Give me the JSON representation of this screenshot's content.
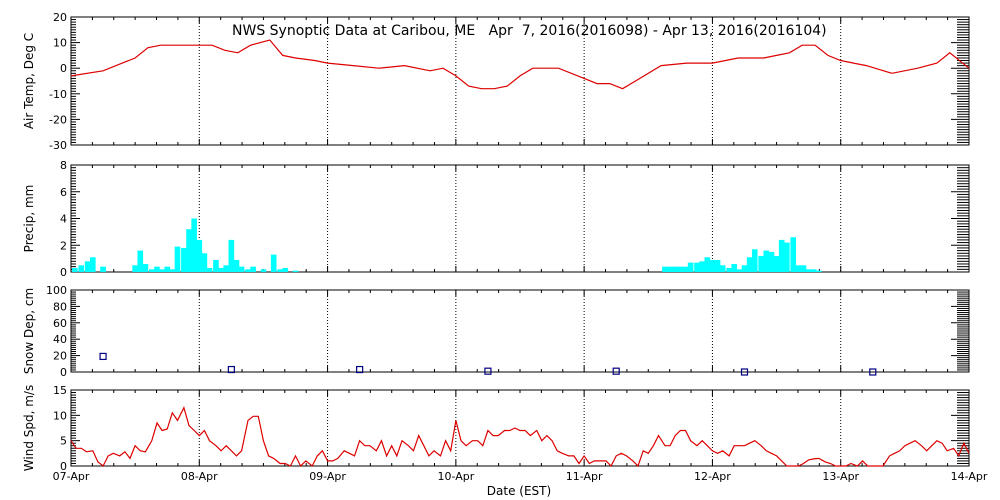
{
  "title": "NWS Synoptic Data at Caribou, ME   Apr  7, 2016(2016098) - Apr 13, 2016(2016104)",
  "x_axis": {
    "label": "Date (EST)",
    "ticks": [
      "07-Apr",
      "08-Apr",
      "09-Apr",
      "10-Apr",
      "11-Apr",
      "12-Apr",
      "13-Apr",
      "14-Apr"
    ]
  },
  "colors": {
    "temp_line": "#dd0000",
    "precip_bar": "#00ffff",
    "snow_marker": "#000080",
    "wind_line": "#dd0000"
  },
  "chart_data": [
    {
      "type": "line",
      "ylabel": "Air Temp, Deg C",
      "ylim": [
        -30,
        20
      ],
      "yticks": [
        20,
        10,
        0,
        -10,
        -20,
        -30
      ],
      "grid": "vertical dotted at each day",
      "x_units": "days since 07-Apr 00:00",
      "x": [
        0,
        0.25,
        0.4,
        0.5,
        0.6,
        0.7,
        0.8,
        0.9,
        1.0,
        1.1,
        1.2,
        1.3,
        1.4,
        1.55,
        1.65,
        1.75,
        1.9,
        2.0,
        2.2,
        2.4,
        2.6,
        2.8,
        2.9,
        3.0,
        3.1,
        3.2,
        3.3,
        3.4,
        3.5,
        3.6,
        3.8,
        4.0,
        4.1,
        4.2,
        4.3,
        4.4,
        4.6,
        4.8,
        5.0,
        5.2,
        5.3,
        5.4,
        5.5,
        5.6,
        5.7,
        5.8,
        5.9,
        6.0,
        6.1,
        6.2,
        6.4,
        6.6,
        6.75,
        6.85,
        7.0
      ],
      "y": [
        -3,
        -1,
        2,
        4,
        8,
        9,
        9,
        9,
        9,
        9,
        7,
        6,
        9,
        11,
        5,
        4,
        3,
        2,
        1,
        0,
        1,
        -1,
        0,
        -3,
        -7,
        -8,
        -8,
        -7,
        -3,
        0,
        0,
        -4,
        -6,
        -6,
        -8,
        -5,
        1,
        2,
        2,
        4,
        4,
        4,
        5,
        6,
        9,
        9,
        5,
        3,
        2,
        1,
        -2,
        0,
        2,
        6,
        0
      ]
    },
    {
      "type": "bar",
      "ylabel": "Precip, mm",
      "ylim": [
        0,
        8
      ],
      "yticks": [
        8,
        6,
        4,
        2,
        0
      ],
      "x_units": "days since 07-Apr 00:00 (hourly bins)",
      "x": [
        0.03,
        0.08,
        0.13,
        0.17,
        0.25,
        0.5,
        0.54,
        0.58,
        0.63,
        0.67,
        0.71,
        0.75,
        0.79,
        0.83,
        0.88,
        0.92,
        0.96,
        1.0,
        1.04,
        1.08,
        1.13,
        1.17,
        1.21,
        1.25,
        1.29,
        1.33,
        1.38,
        1.42,
        1.5,
        1.58,
        1.63,
        1.67,
        1.75,
        4.63,
        4.67,
        4.71,
        4.75,
        4.79,
        4.83,
        4.88,
        4.92,
        4.96,
        5.0,
        5.04,
        5.08,
        5.13,
        5.17,
        5.21,
        5.25,
        5.29,
        5.33,
        5.38,
        5.42,
        5.46,
        5.5,
        5.54,
        5.58,
        5.63,
        5.67,
        5.71,
        5.75,
        5.79,
        5.83
      ],
      "values": [
        0.3,
        0.5,
        0.8,
        1.1,
        0.4,
        0.5,
        1.6,
        0.6,
        0.2,
        0.4,
        0.2,
        0.4,
        0.2,
        1.9,
        1.8,
        3.2,
        4.0,
        2.4,
        1.4,
        0.3,
        0.9,
        0.3,
        0.5,
        2.4,
        0.9,
        0.4,
        0.2,
        0.4,
        0.2,
        1.3,
        0.2,
        0.3,
        0.1,
        0.4,
        0.4,
        0.4,
        0.4,
        0.4,
        0.7,
        0.7,
        0.8,
        1.1,
        0.9,
        0.9,
        0.5,
        0.3,
        0.6,
        0.2,
        0.5,
        1.1,
        1.7,
        1.2,
        1.6,
        1.5,
        1.2,
        2.4,
        2.2,
        2.6,
        0.5,
        0.5,
        0.2,
        0.2,
        0.1
      ]
    },
    {
      "type": "scatter",
      "ylabel": "Snow Dep, cm",
      "ylim": [
        0,
        100
      ],
      "yticks": [
        100,
        80,
        60,
        40,
        20,
        0
      ],
      "marker": "open square",
      "x_units": "days since 07-Apr 00:00",
      "x": [
        0.25,
        1.25,
        2.25,
        3.25,
        4.25,
        5.25,
        6.25
      ],
      "y": [
        19,
        3,
        3,
        1,
        1,
        0,
        0
      ]
    },
    {
      "type": "line",
      "ylabel": "Wind Spd, m/s",
      "ylim": [
        0,
        15
      ],
      "yticks": [
        15,
        10,
        5,
        0
      ],
      "x_units": "days since 07-Apr 00:00",
      "x": [
        0,
        0.04,
        0.08,
        0.12,
        0.17,
        0.21,
        0.25,
        0.29,
        0.33,
        0.38,
        0.42,
        0.46,
        0.5,
        0.54,
        0.58,
        0.63,
        0.67,
        0.71,
        0.75,
        0.79,
        0.83,
        0.88,
        0.92,
        0.96,
        1.0,
        1.04,
        1.08,
        1.13,
        1.17,
        1.21,
        1.25,
        1.29,
        1.33,
        1.38,
        1.42,
        1.46,
        1.5,
        1.54,
        1.58,
        1.63,
        1.67,
        1.71,
        1.75,
        1.79,
        1.83,
        1.88,
        1.92,
        1.96,
        2.0,
        2.04,
        2.08,
        2.13,
        2.17,
        2.21,
        2.25,
        2.29,
        2.33,
        2.38,
        2.42,
        2.46,
        2.5,
        2.54,
        2.58,
        2.63,
        2.67,
        2.71,
        2.75,
        2.79,
        2.83,
        2.88,
        2.92,
        2.96,
        3.0,
        3.04,
        3.08,
        3.13,
        3.17,
        3.21,
        3.25,
        3.29,
        3.33,
        3.38,
        3.42,
        3.46,
        3.5,
        3.54,
        3.58,
        3.63,
        3.67,
        3.71,
        3.75,
        3.79,
        3.83,
        3.88,
        3.92,
        3.96,
        4.0,
        4.04,
        4.08,
        4.13,
        4.17,
        4.21,
        4.25,
        4.29,
        4.33,
        4.38,
        4.42,
        4.46,
        4.5,
        4.54,
        4.58,
        4.63,
        4.67,
        4.71,
        4.75,
        4.79,
        4.83,
        4.88,
        4.92,
        4.96,
        5.0,
        5.04,
        5.08,
        5.13,
        5.17,
        5.21,
        5.25,
        5.29,
        5.33,
        5.38,
        5.42,
        5.46,
        5.5,
        5.54,
        5.58,
        5.63,
        5.67,
        5.71,
        5.75,
        5.79,
        5.83,
        5.88,
        5.92,
        5.96,
        6.0,
        6.04,
        6.08,
        6.13,
        6.17,
        6.21,
        6.25,
        6.29,
        6.33,
        6.38,
        6.42,
        6.46,
        6.5,
        6.54,
        6.58,
        6.63,
        6.67,
        6.71,
        6.75,
        6.79,
        6.83,
        6.88,
        6.92,
        6.96,
        7.0
      ],
      "y": [
        5,
        3.5,
        3.5,
        2.8,
        3,
        0.8,
        0,
        2,
        2.5,
        2,
        2.8,
        1.5,
        4,
        3,
        2.8,
        5,
        8.5,
        7,
        7.3,
        10.5,
        9,
        11.5,
        8,
        7,
        6,
        7,
        5,
        4,
        3,
        4,
        3,
        2,
        3,
        9,
        9.8,
        9.8,
        5,
        2,
        1.5,
        0.5,
        0.5,
        0,
        2,
        0,
        1,
        0,
        2,
        3,
        1,
        1,
        1.5,
        3,
        2.5,
        2,
        5,
        4,
        4,
        3,
        5,
        2,
        4,
        2,
        5,
        4,
        3,
        6,
        4,
        2,
        3,
        2,
        5,
        3,
        9,
        5,
        4,
        5,
        5,
        4,
        7,
        6,
        6,
        7,
        7,
        7.5,
        7,
        7,
        6,
        7,
        5,
        6,
        5,
        3,
        2.5,
        2,
        2,
        0.5,
        2,
        0.5,
        1,
        1,
        1,
        0,
        2,
        2.5,
        2,
        1,
        0,
        3,
        2.5,
        4,
        6,
        4,
        4,
        6,
        7,
        7,
        5,
        4,
        5,
        4,
        3,
        2.5,
        3,
        2,
        4,
        4,
        4,
        4.5,
        5,
        4,
        3,
        2.5,
        2,
        1,
        0,
        0,
        0,
        0.5,
        1.2,
        1.4,
        1.5,
        0.8,
        0.5,
        0,
        0,
        0,
        0.5,
        0,
        1,
        0,
        0,
        0,
        0,
        2,
        2.5,
        3,
        4,
        4.5,
        5,
        4,
        3,
        4,
        5,
        4.5,
        3,
        3.5,
        2,
        4.5,
        2.5
      ]
    }
  ]
}
